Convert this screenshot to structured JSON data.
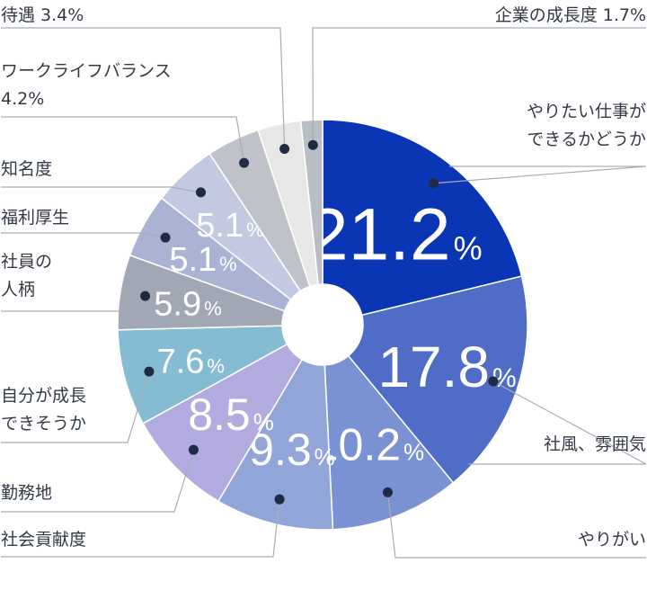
{
  "chart_data": {
    "type": "pie",
    "variant": "donut",
    "unit": "%",
    "slices": [
      {
        "label": "やりたい仕事ができるかどうか",
        "lines": [
          "やりたい仕事が",
          "できるかどうか"
        ],
        "value": 21.2,
        "value_text": "21.2",
        "color": "#0a36b5",
        "show_value": true,
        "value_size": "xl"
      },
      {
        "label": "社風、雰囲気",
        "lines": [
          "社風、雰囲気"
        ],
        "value": 17.8,
        "value_text": "17.8",
        "color": "#4f6cc7",
        "show_value": true,
        "value_size": "lg"
      },
      {
        "label": "やりがい",
        "lines": [
          "やりがい"
        ],
        "value": 10.2,
        "value_text": "10.2",
        "color": "#7a92d3",
        "show_value": true,
        "value_size": "md"
      },
      {
        "label": "社会貢献度",
        "lines": [
          "社会貢献度"
        ],
        "value": 9.3,
        "value_text": "9.3",
        "color": "#92a5d8",
        "show_value": true,
        "value_size": "md"
      },
      {
        "label": "勤務地",
        "lines": [
          "勤務地"
        ],
        "value": 8.5,
        "value_text": "8.5",
        "color": "#b2abdf",
        "show_value": true,
        "value_size": "md"
      },
      {
        "label": "自分が成長できそうか",
        "lines": [
          "自分が成長",
          "できそうか"
        ],
        "value": 7.6,
        "value_text": "7.6",
        "color": "#86bcd3",
        "show_value": true,
        "value_size": "sm"
      },
      {
        "label": "社員の人柄",
        "lines": [
          "社員の",
          "人柄"
        ],
        "value": 5.9,
        "value_text": "5.9",
        "color": "#a2a7b6",
        "show_value": true,
        "value_size": "sm"
      },
      {
        "label": "福利厚生",
        "lines": [
          "福利厚生"
        ],
        "value": 5.1,
        "value_text": "5.1",
        "color": "#aab3d3",
        "show_value": true,
        "value_size": "sm"
      },
      {
        "label": "知名度",
        "lines": [
          "知名度"
        ],
        "value": 5.1,
        "value_text": "5.1",
        "color": "#c3c9e0",
        "show_value": true,
        "value_size": "sm"
      },
      {
        "label": "ワークライフバランス",
        "lines": [
          "ワークライフバランス",
          "4.2%"
        ],
        "value": 4.2,
        "value_text": "4.2",
        "color": "#bfc2c9",
        "show_value": false
      },
      {
        "label": "待遇",
        "lines": [
          "待遇 3.4%"
        ],
        "value": 3.4,
        "value_text": "3.4",
        "color": "#e7e7e7",
        "show_value": false
      },
      {
        "label": "企業の成長度",
        "lines": [
          "企業の成長度 1.7%"
        ],
        "value": 1.7,
        "value_text": "1.7",
        "color": "#b9bdc4",
        "show_value": false
      }
    ]
  }
}
